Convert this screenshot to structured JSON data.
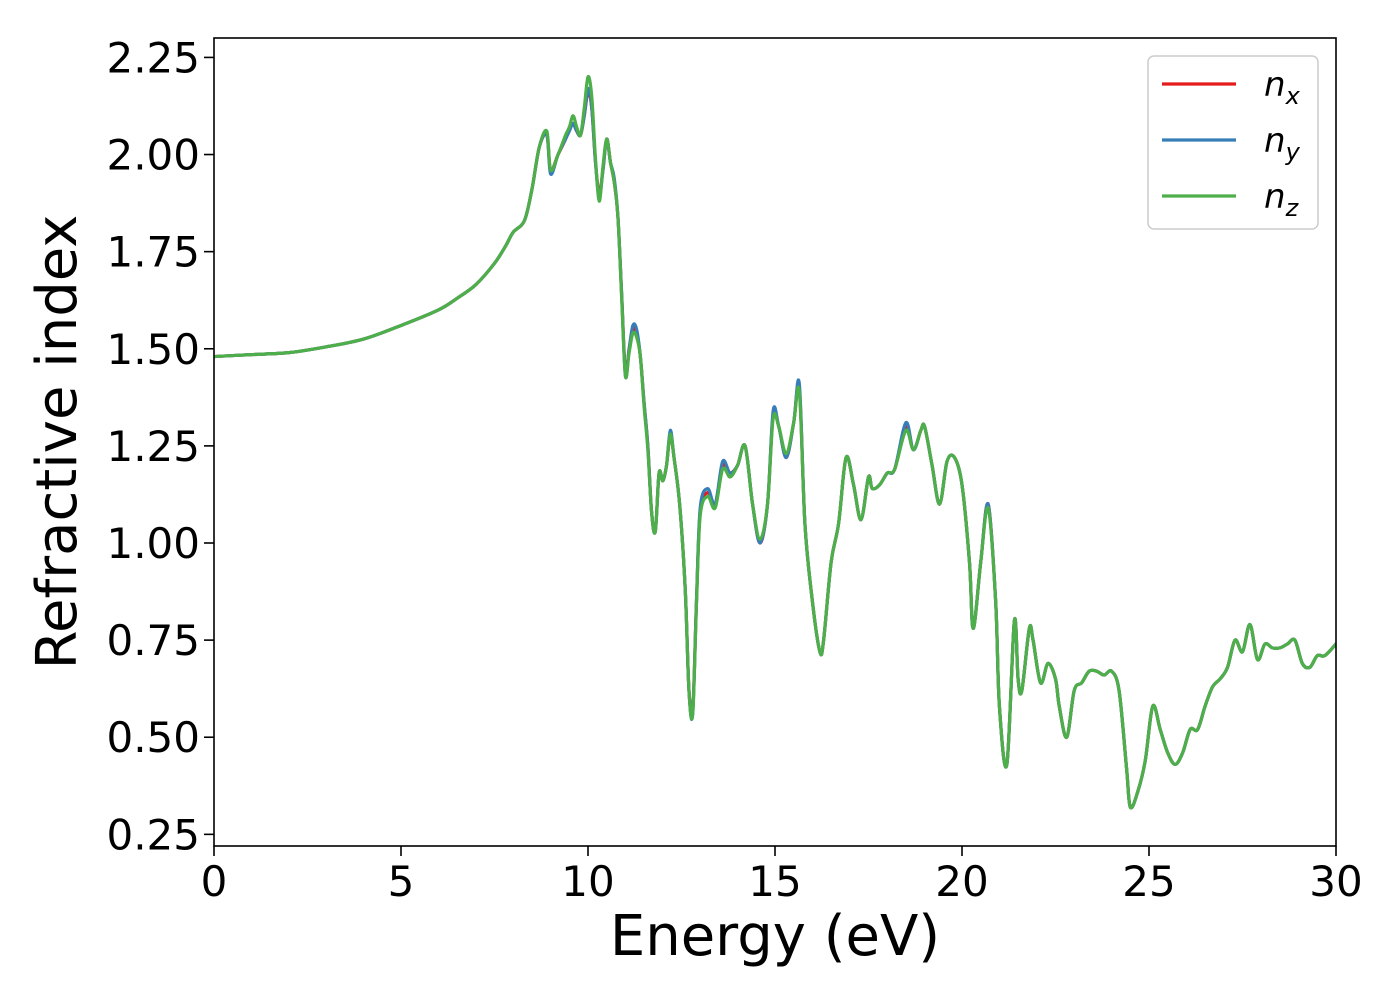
{
  "chart_data": {
    "type": "line",
    "xlabel": "Energy (eV)",
    "ylabel": "Refractive index",
    "xlim": [
      0,
      30
    ],
    "ylim": [
      0.22,
      2.3
    ],
    "xticks": [
      0,
      5,
      10,
      15,
      20,
      25,
      30
    ],
    "xtick_labels": [
      "0",
      "5",
      "10",
      "15",
      "20",
      "25",
      "30"
    ],
    "yticks": [
      0.25,
      0.5,
      0.75,
      1.0,
      1.25,
      1.5,
      1.75,
      2.0,
      2.25
    ],
    "ytick_labels": [
      "0.25",
      "0.50",
      "0.75",
      "1.00",
      "1.25",
      "1.50",
      "1.75",
      "2.00",
      "2.25"
    ],
    "grid": false,
    "legend_position": "top-right",
    "series": [
      {
        "name": "n_x",
        "legend_base": "n",
        "legend_sub": "x",
        "color": "#e41a1c",
        "x": [
          0,
          1,
          2,
          3,
          4,
          5,
          6,
          6.5,
          7,
          7.5,
          7.8,
          8,
          8.3,
          8.5,
          8.7,
          8.9,
          9.0,
          9.2,
          9.4,
          9.5,
          9.6,
          9.7,
          9.8,
          9.9,
          10.0,
          10.1,
          10.2,
          10.3,
          10.4,
          10.5,
          10.6,
          10.7,
          10.8,
          10.9,
          11.0,
          11.1,
          11.2,
          11.3,
          11.4,
          11.5,
          11.6,
          11.7,
          11.8,
          11.9,
          12.0,
          12.1,
          12.2,
          12.3,
          12.45,
          12.6,
          12.7,
          12.8,
          12.9,
          13.0,
          13.2,
          13.4,
          13.6,
          13.8,
          14.0,
          14.2,
          14.4,
          14.6,
          14.8,
          14.95,
          15.1,
          15.3,
          15.5,
          15.65,
          15.8,
          16.0,
          16.2,
          16.3,
          16.5,
          16.7,
          16.9,
          17.1,
          17.3,
          17.5,
          17.6,
          17.8,
          18.0,
          18.2,
          18.5,
          18.7,
          18.9,
          19.0,
          19.2,
          19.4,
          19.6,
          19.8,
          20.0,
          20.2,
          20.3,
          20.5,
          20.7,
          20.9,
          21.0,
          21.2,
          21.4,
          21.5,
          21.6,
          21.8,
          21.9,
          22.1,
          22.3,
          22.5,
          22.6,
          22.8,
          23.0,
          23.2,
          23.4,
          23.6,
          23.8,
          24.0,
          24.2,
          24.4,
          24.5,
          24.7,
          24.9,
          25.1,
          25.3,
          25.5,
          25.7,
          25.9,
          26.1,
          26.3,
          26.5,
          26.7,
          26.9,
          27.1,
          27.3,
          27.5,
          27.7,
          27.9,
          28.1,
          28.3,
          28.5,
          28.7,
          28.9,
          29.1,
          29.3,
          29.5,
          29.7,
          30.0
        ],
        "y": [
          1.48,
          1.485,
          1.49,
          1.505,
          1.525,
          1.56,
          1.6,
          1.63,
          1.665,
          1.72,
          1.765,
          1.8,
          1.83,
          1.91,
          2.02,
          2.05,
          1.96,
          2.0,
          2.04,
          2.07,
          2.08,
          2.06,
          2.05,
          2.1,
          2.16,
          2.12,
          1.98,
          1.9,
          1.96,
          2.04,
          1.98,
          1.93,
          1.84,
          1.64,
          1.44,
          1.5,
          1.55,
          1.54,
          1.48,
          1.36,
          1.25,
          1.08,
          1.03,
          1.18,
          1.16,
          1.2,
          1.28,
          1.22,
          1.1,
          0.88,
          0.62,
          0.57,
          0.85,
          1.08,
          1.13,
          1.1,
          1.2,
          1.18,
          1.2,
          1.25,
          1.1,
          1.0,
          1.1,
          1.33,
          1.3,
          1.22,
          1.31,
          1.4,
          1.05,
          0.85,
          0.72,
          0.75,
          0.95,
          1.05,
          1.22,
          1.15,
          1.06,
          1.17,
          1.14,
          1.15,
          1.18,
          1.19,
          1.3,
          1.24,
          1.29,
          1.3,
          1.2,
          1.1,
          1.21,
          1.22,
          1.15,
          0.95,
          0.78,
          0.95,
          1.1,
          0.85,
          0.58,
          0.43,
          0.8,
          0.65,
          0.62,
          0.78,
          0.75,
          0.64,
          0.69,
          0.65,
          0.58,
          0.5,
          0.62,
          0.64,
          0.67,
          0.67,
          0.66,
          0.67,
          0.62,
          0.42,
          0.32,
          0.36,
          0.44,
          0.58,
          0.52,
          0.46,
          0.43,
          0.46,
          0.52,
          0.52,
          0.58,
          0.63,
          0.65,
          0.68,
          0.75,
          0.72,
          0.79,
          0.7,
          0.74,
          0.73,
          0.73,
          0.74,
          0.75,
          0.69,
          0.68,
          0.71,
          0.71,
          0.74
        ]
      },
      {
        "name": "n_y",
        "legend_base": "n",
        "legend_sub": "y",
        "color": "#377eb8",
        "x": [
          0,
          1,
          2,
          3,
          4,
          5,
          6,
          6.5,
          7,
          7.5,
          7.8,
          8,
          8.3,
          8.5,
          8.7,
          8.9,
          9.0,
          9.2,
          9.4,
          9.5,
          9.6,
          9.7,
          9.8,
          9.9,
          10.0,
          10.1,
          10.2,
          10.3,
          10.4,
          10.5,
          10.6,
          10.7,
          10.8,
          10.9,
          11.0,
          11.1,
          11.2,
          11.3,
          11.4,
          11.5,
          11.6,
          11.7,
          11.8,
          11.9,
          12.0,
          12.1,
          12.2,
          12.3,
          12.45,
          12.6,
          12.7,
          12.8,
          12.9,
          13.0,
          13.2,
          13.4,
          13.6,
          13.8,
          14.0,
          14.2,
          14.4,
          14.6,
          14.8,
          14.95,
          15.1,
          15.3,
          15.5,
          15.65,
          15.8,
          16.0,
          16.2,
          16.3,
          16.5,
          16.7,
          16.9,
          17.1,
          17.3,
          17.5,
          17.6,
          17.8,
          18.0,
          18.2,
          18.5,
          18.7,
          18.9,
          19.0,
          19.2,
          19.4,
          19.6,
          19.8,
          20.0,
          20.2,
          20.3,
          20.5,
          20.7,
          20.9,
          21.0,
          21.2,
          21.4,
          21.5,
          21.6,
          21.8,
          21.9,
          22.1,
          22.3,
          22.5,
          22.6,
          22.8,
          23.0,
          23.2,
          23.4,
          23.6,
          23.8,
          24.0,
          24.2,
          24.4,
          24.5,
          24.7,
          24.9,
          25.1,
          25.3,
          25.5,
          25.7,
          25.9,
          26.1,
          26.3,
          26.5,
          26.7,
          26.9,
          27.1,
          27.3,
          27.5,
          27.7,
          27.9,
          28.1,
          28.3,
          28.5,
          28.7,
          28.9,
          29.1,
          29.3,
          29.5,
          29.7,
          30.0
        ],
        "y": [
          1.48,
          1.485,
          1.49,
          1.505,
          1.525,
          1.56,
          1.6,
          1.63,
          1.665,
          1.72,
          1.765,
          1.8,
          1.83,
          1.91,
          2.02,
          2.05,
          1.95,
          2.0,
          2.04,
          2.06,
          2.08,
          2.06,
          2.05,
          2.1,
          2.17,
          2.12,
          1.98,
          1.89,
          1.96,
          2.04,
          1.98,
          1.94,
          1.84,
          1.64,
          1.43,
          1.5,
          1.56,
          1.55,
          1.48,
          1.36,
          1.25,
          1.08,
          1.03,
          1.18,
          1.16,
          1.2,
          1.29,
          1.22,
          1.1,
          0.88,
          0.62,
          0.56,
          0.85,
          1.09,
          1.14,
          1.1,
          1.21,
          1.18,
          1.2,
          1.25,
          1.1,
          1.0,
          1.1,
          1.34,
          1.3,
          1.22,
          1.31,
          1.41,
          1.05,
          0.85,
          0.72,
          0.75,
          0.95,
          1.05,
          1.22,
          1.15,
          1.06,
          1.17,
          1.14,
          1.15,
          1.18,
          1.19,
          1.31,
          1.24,
          1.29,
          1.3,
          1.2,
          1.1,
          1.21,
          1.22,
          1.15,
          0.95,
          0.78,
          0.95,
          1.1,
          0.85,
          0.58,
          0.43,
          0.8,
          0.65,
          0.62,
          0.78,
          0.75,
          0.64,
          0.69,
          0.65,
          0.58,
          0.5,
          0.62,
          0.64,
          0.67,
          0.67,
          0.66,
          0.67,
          0.62,
          0.42,
          0.32,
          0.36,
          0.44,
          0.58,
          0.52,
          0.46,
          0.43,
          0.46,
          0.52,
          0.52,
          0.58,
          0.63,
          0.65,
          0.68,
          0.75,
          0.72,
          0.79,
          0.7,
          0.74,
          0.73,
          0.73,
          0.74,
          0.75,
          0.69,
          0.68,
          0.71,
          0.71,
          0.74
        ]
      },
      {
        "name": "n_z",
        "legend_base": "n",
        "legend_sub": "z",
        "color": "#4daf4a",
        "x": [
          0,
          1,
          2,
          3,
          4,
          5,
          6,
          6.5,
          7,
          7.5,
          7.8,
          8,
          8.3,
          8.5,
          8.7,
          8.9,
          9.0,
          9.2,
          9.4,
          9.5,
          9.6,
          9.7,
          9.8,
          9.9,
          10.0,
          10.1,
          10.2,
          10.3,
          10.4,
          10.5,
          10.6,
          10.7,
          10.8,
          10.9,
          11.0,
          11.1,
          11.2,
          11.3,
          11.4,
          11.5,
          11.6,
          11.7,
          11.8,
          11.9,
          12.0,
          12.1,
          12.2,
          12.3,
          12.45,
          12.6,
          12.7,
          12.8,
          12.9,
          13.0,
          13.2,
          13.4,
          13.6,
          13.8,
          14.0,
          14.2,
          14.4,
          14.6,
          14.8,
          14.95,
          15.1,
          15.3,
          15.5,
          15.65,
          15.8,
          16.0,
          16.2,
          16.3,
          16.5,
          16.7,
          16.9,
          17.1,
          17.3,
          17.5,
          17.6,
          17.8,
          18.0,
          18.2,
          18.5,
          18.7,
          18.9,
          19.0,
          19.2,
          19.4,
          19.6,
          19.8,
          20.0,
          20.2,
          20.3,
          20.5,
          20.7,
          20.9,
          21.0,
          21.2,
          21.4,
          21.5,
          21.6,
          21.8,
          21.9,
          22.1,
          22.3,
          22.5,
          22.6,
          22.8,
          23.0,
          23.2,
          23.4,
          23.6,
          23.8,
          24.0,
          24.2,
          24.4,
          24.5,
          24.7,
          24.9,
          25.1,
          25.3,
          25.5,
          25.7,
          25.9,
          26.1,
          26.3,
          26.5,
          26.7,
          26.9,
          27.1,
          27.3,
          27.5,
          27.7,
          27.9,
          28.1,
          28.3,
          28.5,
          28.7,
          28.9,
          29.1,
          29.3,
          29.5,
          29.7,
          30.0
        ],
        "y": [
          1.48,
          1.485,
          1.49,
          1.505,
          1.525,
          1.56,
          1.6,
          1.63,
          1.665,
          1.72,
          1.765,
          1.8,
          1.83,
          1.91,
          2.02,
          2.06,
          1.96,
          2.0,
          2.05,
          2.07,
          2.1,
          2.07,
          2.05,
          2.12,
          2.2,
          2.15,
          1.99,
          1.88,
          1.97,
          2.04,
          1.98,
          1.93,
          1.84,
          1.63,
          1.43,
          1.49,
          1.54,
          1.53,
          1.48,
          1.35,
          1.24,
          1.08,
          1.03,
          1.18,
          1.16,
          1.2,
          1.28,
          1.22,
          1.1,
          0.88,
          0.62,
          0.56,
          0.84,
          1.07,
          1.12,
          1.09,
          1.19,
          1.17,
          1.2,
          1.25,
          1.1,
          1.01,
          1.1,
          1.32,
          1.3,
          1.23,
          1.31,
          1.39,
          1.05,
          0.85,
          0.72,
          0.75,
          0.95,
          1.05,
          1.22,
          1.15,
          1.06,
          1.17,
          1.14,
          1.15,
          1.18,
          1.19,
          1.29,
          1.24,
          1.29,
          1.3,
          1.2,
          1.1,
          1.21,
          1.22,
          1.15,
          0.95,
          0.78,
          0.95,
          1.09,
          0.85,
          0.58,
          0.43,
          0.8,
          0.65,
          0.62,
          0.78,
          0.75,
          0.64,
          0.69,
          0.65,
          0.58,
          0.5,
          0.62,
          0.64,
          0.67,
          0.67,
          0.66,
          0.67,
          0.62,
          0.42,
          0.32,
          0.36,
          0.44,
          0.58,
          0.52,
          0.46,
          0.43,
          0.46,
          0.52,
          0.52,
          0.58,
          0.63,
          0.65,
          0.68,
          0.75,
          0.72,
          0.79,
          0.7,
          0.74,
          0.73,
          0.73,
          0.74,
          0.75,
          0.69,
          0.68,
          0.71,
          0.71,
          0.74
        ]
      }
    ]
  }
}
